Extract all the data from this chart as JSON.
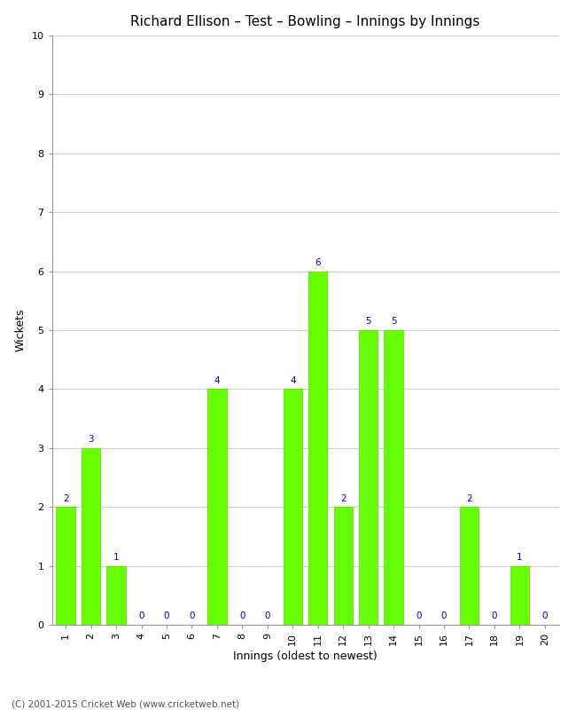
{
  "title": "Richard Ellison – Test – Bowling – Innings by Innings",
  "xlabel": "Innings (oldest to newest)",
  "ylabel": "Wickets",
  "categories": [
    1,
    2,
    3,
    4,
    5,
    6,
    7,
    8,
    9,
    10,
    11,
    12,
    13,
    14,
    15,
    16,
    17,
    18,
    19,
    20
  ],
  "values": [
    2,
    3,
    1,
    0,
    0,
    0,
    4,
    0,
    0,
    4,
    6,
    2,
    5,
    5,
    0,
    0,
    2,
    0,
    1,
    0
  ],
  "bar_color": "#66ff00",
  "bar_edge_color": "#55dd00",
  "label_color": "#0000cc",
  "background_color": "#ffffff",
  "ylim": [
    0,
    10
  ],
  "yticks": [
    0,
    1,
    2,
    3,
    4,
    5,
    6,
    7,
    8,
    9,
    10
  ],
  "grid_color": "#d0d0d0",
  "title_fontsize": 11,
  "axis_label_fontsize": 9,
  "tick_fontsize": 8,
  "bar_label_fontsize": 7.5,
  "footer_text": "(C) 2001-2015 Cricket Web (www.cricketweb.net)",
  "footer_fontsize": 7.5
}
